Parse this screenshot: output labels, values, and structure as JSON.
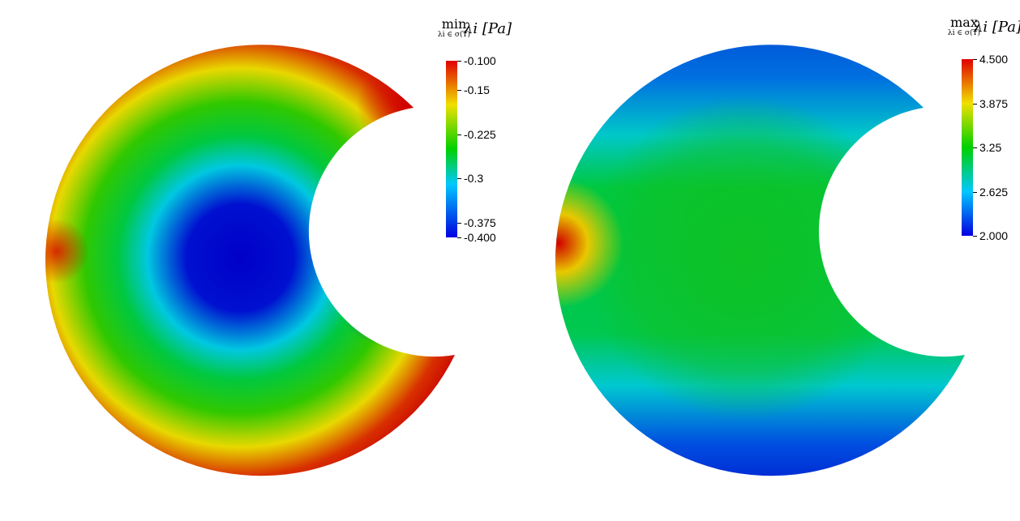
{
  "panels": [
    {
      "id": "min",
      "colorbar": {
        "title_op": "min",
        "title_sub": "λi ∈ σ(T)",
        "title_sym": "λi [Pa]",
        "labels": [
          "-0.100",
          "-0.15",
          "-0.225",
          "-0.3",
          "-0.375",
          "-0.400"
        ],
        "range": [
          -0.4,
          -0.1
        ]
      }
    },
    {
      "id": "max",
      "colorbar": {
        "title_op": "max",
        "title_sub": "λi ∈ σ(T)",
        "title_sym": "λi [Pa]",
        "labels": [
          "4.500",
          "3.875",
          "3.25",
          "2.625",
          "2.000"
        ],
        "range": [
          2.0,
          4.5
        ]
      }
    }
  ],
  "colormap": [
    "#0000c8",
    "#00c8ff",
    "#00d000",
    "#f0e000",
    "#d00000"
  ]
}
